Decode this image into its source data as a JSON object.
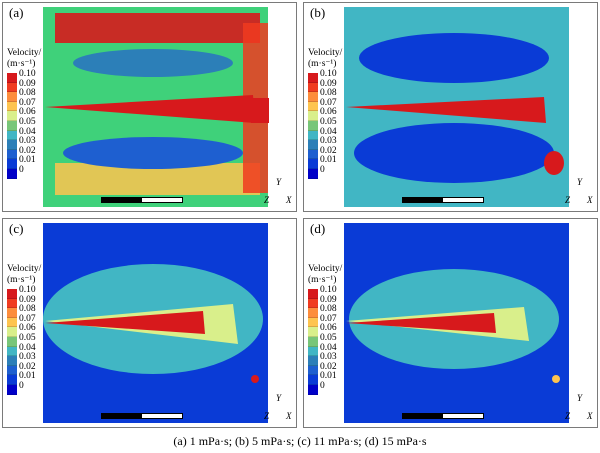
{
  "panels": [
    {
      "label": "(a)",
      "legend_title": "Velocity/",
      "legend_units": "(m·s⁻¹)"
    },
    {
      "label": "(b)",
      "legend_title": "Velocity/",
      "legend_units": "(m·s⁻¹)"
    },
    {
      "label": "(c)",
      "legend_title": "Velocity/",
      "legend_units": "(m·s⁻¹)"
    },
    {
      "label": "(d)",
      "legend_title": "Velocity/",
      "legend_units": "(m·s⁻¹)"
    }
  ],
  "legend_ticks": [
    "0.10",
    "0.09",
    "0.08",
    "0.07",
    "0.06",
    "0.05",
    "0.04",
    "0.03",
    "0.02",
    "0.01",
    "0"
  ],
  "axis_labels": {
    "y": "Y",
    "z": "Z",
    "x": "X"
  },
  "colors": [
    "#d7191c",
    "#f03b20",
    "#fd8d3c",
    "#fec44f",
    "#d9ef8b",
    "#78c679",
    "#41b6c4",
    "#2c7fb8",
    "#1e5fd0",
    "#0a3bd6",
    "#0000c8"
  ],
  "caption": "(a) 1 mPa·s; (b) 5 mPa·s; (c) 11 mPa·s; (d) 15 mPa·s"
}
